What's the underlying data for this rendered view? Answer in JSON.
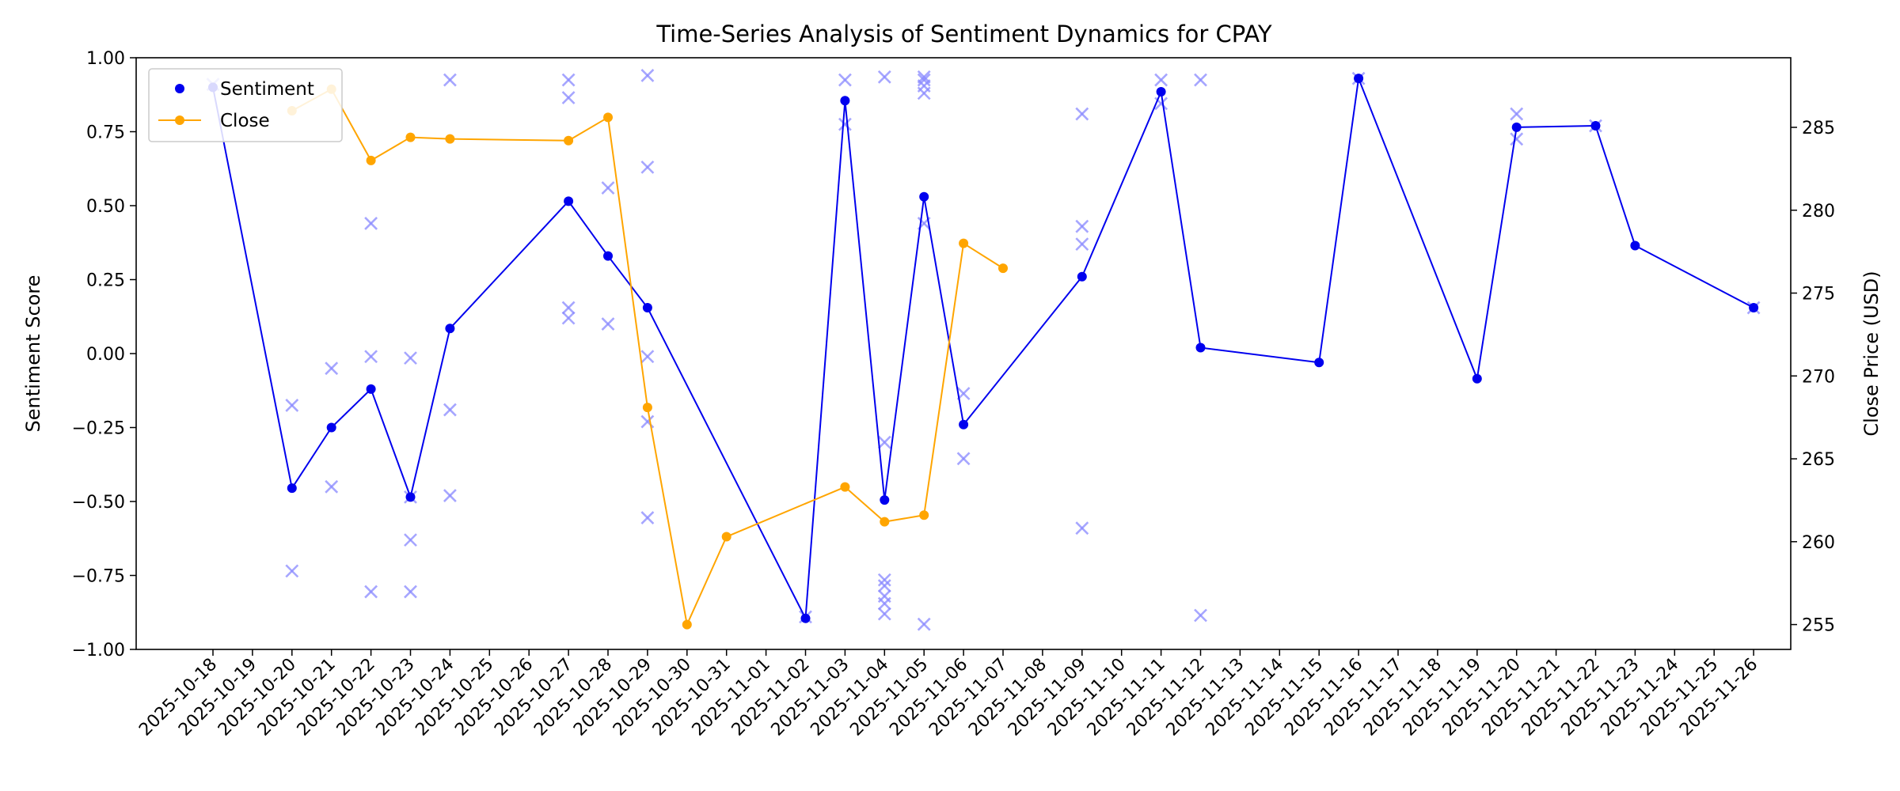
{
  "chart_data": {
    "type": "line",
    "title": "Time-Series Analysis of Sentiment Dynamics for CPAY",
    "ylabel_left": "Sentiment Score",
    "ylabel_right": "Close Price (USD)",
    "xlabel": "",
    "ylim_left": [
      -1.0,
      1.0
    ],
    "ylim_right": [
      253.5,
      289.2
    ],
    "yticks_left": [
      "−1.00",
      "−0.75",
      "−0.50",
      "−0.25",
      "0.00",
      "0.25",
      "0.50",
      "0.75",
      "1.00"
    ],
    "yticks_right": [
      "255",
      "260",
      "265",
      "270",
      "275",
      "280",
      "285"
    ],
    "x_dates": [
      "2025-10-18",
      "2025-10-19",
      "2025-10-20",
      "2025-10-21",
      "2025-10-22",
      "2025-10-23",
      "2025-10-24",
      "2025-10-25",
      "2025-10-26",
      "2025-10-27",
      "2025-10-28",
      "2025-10-29",
      "2025-10-30",
      "2025-10-31",
      "2025-11-01",
      "2025-11-02",
      "2025-11-03",
      "2025-11-04",
      "2025-11-05",
      "2025-11-06",
      "2025-11-07",
      "2025-11-08",
      "2025-11-09",
      "2025-11-10",
      "2025-11-11",
      "2025-11-12",
      "2025-11-13",
      "2025-11-14",
      "2025-11-15",
      "2025-11-16",
      "2025-11-17",
      "2025-11-18",
      "2025-11-19",
      "2025-11-20",
      "2025-11-21",
      "2025-11-22",
      "2025-11-23",
      "2025-11-24",
      "2025-11-25",
      "2025-11-26"
    ],
    "legend_position": "top-left",
    "grid": false,
    "colors": {
      "sentiment": "#0000ee",
      "close": "#ffa500",
      "raw": "#8888ff"
    },
    "series": [
      {
        "name": "Sentiment",
        "axis": "left",
        "marker": "circle",
        "x": [
          "2025-10-18",
          "2025-10-20",
          "2025-10-21",
          "2025-10-22",
          "2025-10-23",
          "2025-10-24",
          "2025-10-27",
          "2025-10-28",
          "2025-10-29",
          "2025-11-02",
          "2025-11-03",
          "2025-11-04",
          "2025-11-05",
          "2025-11-06",
          "2025-11-09",
          "2025-11-11",
          "2025-11-12",
          "2025-11-15",
          "2025-11-16",
          "2025-11-19",
          "2025-11-20",
          "2025-11-22",
          "2025-11-23",
          "2025-11-26"
        ],
        "y": [
          0.9,
          -0.455,
          -0.25,
          -0.12,
          -0.485,
          0.085,
          0.515,
          0.33,
          0.155,
          -0.895,
          0.855,
          -0.495,
          0.53,
          -0.24,
          0.26,
          0.885,
          0.02,
          -0.03,
          0.93,
          -0.085,
          0.765,
          0.77,
          0.365,
          0.155
        ]
      },
      {
        "name": "Close",
        "axis": "right",
        "marker": "circle",
        "x": [
          "2025-10-20",
          "2025-10-21",
          "2025-10-22",
          "2025-10-23",
          "2025-10-24",
          "2025-10-27",
          "2025-10-28",
          "2025-10-29",
          "2025-10-30",
          "2025-10-31",
          "2025-11-03",
          "2025-11-04",
          "2025-11-05",
          "2025-11-06",
          "2025-11-07"
        ],
        "y": [
          286.0,
          287.3,
          283.0,
          284.4,
          284.3,
          284.2,
          285.6,
          268.1,
          255.0,
          260.3,
          263.3,
          261.2,
          261.6,
          278.0,
          276.5
        ]
      },
      {
        "name": "",
        "axis": "left",
        "marker": "x",
        "points": [
          [
            "2025-10-18",
            0.91
          ],
          [
            "2025-10-20",
            -0.175
          ],
          [
            "2025-10-20",
            -0.735
          ],
          [
            "2025-10-21",
            -0.05
          ],
          [
            "2025-10-21",
            -0.45
          ],
          [
            "2025-10-22",
            0.44
          ],
          [
            "2025-10-22",
            -0.01
          ],
          [
            "2025-10-22",
            -0.805
          ],
          [
            "2025-10-23",
            -0.015
          ],
          [
            "2025-10-23",
            -0.485
          ],
          [
            "2025-10-23",
            -0.63
          ],
          [
            "2025-10-23",
            -0.805
          ],
          [
            "2025-10-24",
            0.925
          ],
          [
            "2025-10-24",
            -0.19
          ],
          [
            "2025-10-24",
            -0.48
          ],
          [
            "2025-10-27",
            0.925
          ],
          [
            "2025-10-27",
            0.865
          ],
          [
            "2025-10-27",
            0.155
          ],
          [
            "2025-10-27",
            0.12
          ],
          [
            "2025-10-28",
            0.56
          ],
          [
            "2025-10-28",
            0.1
          ],
          [
            "2025-10-29",
            0.94
          ],
          [
            "2025-10-29",
            0.63
          ],
          [
            "2025-10-29",
            -0.01
          ],
          [
            "2025-10-29",
            -0.23
          ],
          [
            "2025-10-29",
            -0.555
          ],
          [
            "2025-11-02",
            -0.89
          ],
          [
            "2025-11-03",
            0.925
          ],
          [
            "2025-11-03",
            0.775
          ],
          [
            "2025-11-04",
            0.935
          ],
          [
            "2025-11-04",
            -0.3
          ],
          [
            "2025-11-04",
            -0.765
          ],
          [
            "2025-11-04",
            -0.785
          ],
          [
            "2025-11-04",
            -0.82
          ],
          [
            "2025-11-04",
            -0.845
          ],
          [
            "2025-11-04",
            -0.88
          ],
          [
            "2025-11-05",
            0.935
          ],
          [
            "2025-11-05",
            0.925
          ],
          [
            "2025-11-05",
            0.905
          ],
          [
            "2025-11-05",
            0.88
          ],
          [
            "2025-11-05",
            0.44
          ],
          [
            "2025-11-05",
            -0.915
          ],
          [
            "2025-11-06",
            -0.135
          ],
          [
            "2025-11-06",
            -0.355
          ],
          [
            "2025-11-09",
            0.81
          ],
          [
            "2025-11-09",
            0.43
          ],
          [
            "2025-11-09",
            0.37
          ],
          [
            "2025-11-09",
            -0.59
          ],
          [
            "2025-11-11",
            0.925
          ],
          [
            "2025-11-11",
            0.845
          ],
          [
            "2025-11-12",
            0.925
          ],
          [
            "2025-11-12",
            -0.885
          ],
          [
            "2025-11-16",
            0.93
          ],
          [
            "2025-11-20",
            0.81
          ],
          [
            "2025-11-20",
            0.725
          ],
          [
            "2025-11-22",
            0.77
          ],
          [
            "2025-11-26",
            0.155
          ]
        ]
      }
    ]
  }
}
